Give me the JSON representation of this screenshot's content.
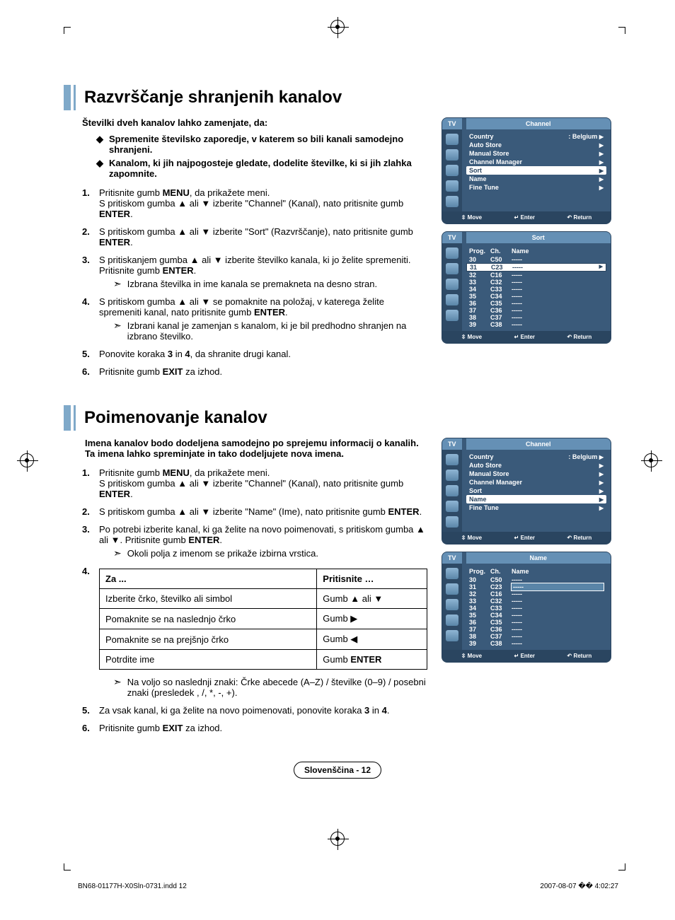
{
  "glyphs": {
    "up": "▲",
    "down": "▼",
    "left": "◀",
    "right": "▶",
    "diamond": "◆",
    "arrowNote": "➣",
    "updown": "⇳",
    "enterIcon": "↵",
    "returnIcon": "↶"
  },
  "sec1": {
    "title": "Razvrščanje shranjenih kanalov",
    "intro": "Številki dveh kanalov lahko zamenjate, da:",
    "bullets": [
      "Spremenite številsko zaporedje, v katerem so bili kanali samodejno shranjeni.",
      "Kanalom, ki jih najpogosteje gledate, dodelite številke, ki si jih zlahka zapomnite."
    ],
    "steps": [
      {
        "n": "1.",
        "html": "Pritisnite gumb <b>MENU</b>, da prikažete meni.<br>S pritiskom gumba ▲ ali ▼ izberite \"Channel\" (Kanal), nato pritisnite gumb <b>ENTER</b>."
      },
      {
        "n": "2.",
        "html": "S pritiskom gumba ▲ ali ▼ izberite \"Sort\" (Razvrščanje), nato pritisnite gumb <b>ENTER</b>."
      },
      {
        "n": "3.",
        "html": "S pritiskanjem gumba ▲ ali ▼ izberite številko kanala, ki jo želite spremeniti. Pritisnite gumb <b>ENTER</b>.",
        "note": "Izbrana številka in ime kanala se premakneta na desno stran."
      },
      {
        "n": "4.",
        "html": "S pritiskom gumba ▲ ali ▼ se pomaknite na položaj, v katerega želite spremeniti kanal, nato pritisnite gumb <b>ENTER</b>.",
        "note": "Izbrani kanal je zamenjan s kanalom, ki je bil predhodno shranjen na izbrano številko."
      },
      {
        "n": "5.",
        "html": "Ponovite koraka <b>3</b> in <b>4</b>, da shranite drugi kanal."
      },
      {
        "n": "6.",
        "html": "Pritisnite gumb <b>EXIT</b> za izhod."
      }
    ]
  },
  "sec2": {
    "title": "Poimenovanje kanalov",
    "intro": "Imena kanalov bodo dodeljena samodejno po sprejemu informacij o kanalih. Ta imena lahko spreminjate in tako dodeljujete nova imena.",
    "steps": [
      {
        "n": "1.",
        "html": "Pritisnite gumb <b>MENU</b>, da prikažete meni.<br>S pritiskom gumba ▲ ali ▼ izberite \"Channel\" (Kanal), nato pritisnite gumb <b>ENTER</b>."
      },
      {
        "n": "2.",
        "html": "S pritiskom gumba ▲ ali ▼ izberite \"Name\" (Ime), nato pritisnite gumb <b>ENTER</b>."
      },
      {
        "n": "3.",
        "html": "Po potrebi izberite kanal, ki ga želite na novo poimenovati, s pritiskom gumba ▲ ali ▼. Pritisnite gumb <b>ENTER</b>.",
        "note": "Okoli polja z imenom se prikaže izbirna vrstica."
      }
    ],
    "tableHead": [
      "Za ...",
      "Pritisnite …"
    ],
    "tableRows": [
      [
        "Izberite črko, številko ali simbol",
        "Gumb ▲ ali ▼"
      ],
      [
        "Pomaknite se na naslednjo črko",
        "Gumb ▶"
      ],
      [
        "Pomaknite se na prejšnjo črko",
        "Gumb ◀"
      ],
      [
        "Potrdite ime",
        "Gumb <b>ENTER</b>"
      ]
    ],
    "postNote": "Na voljo so naslednji znaki: Črke abecede (A–Z) / številke (0–9) / posebni znaki (presledek , /, *, -, +).",
    "postSteps": [
      {
        "n": "5.",
        "html": "Za vsak kanal, ki ga želite na novo poimenovati, ponovite koraka <b>3</b> in <b>4</b>."
      },
      {
        "n": "6.",
        "html": "Pritisnite gumb <b>EXIT</b> za izhod."
      }
    ]
  },
  "osd": {
    "tv": "TV",
    "channelTitle": "Channel",
    "sortTitle": "Sort",
    "nameTitle": "Name",
    "menuItems": [
      "Country",
      "Auto Store",
      "Manual Store",
      "Channel Manager",
      "Sort",
      "Name",
      "Fine Tune"
    ],
    "countryVal": ": Belgium",
    "footer": {
      "move": "Move",
      "enter": "Enter",
      "return": "Return"
    },
    "sortCols": [
      "Prog.",
      "Ch.",
      "Name"
    ],
    "sortRows": [
      [
        "30",
        "C50",
        "-----"
      ],
      [
        "31",
        "C23",
        "-----"
      ],
      [
        "32",
        "C16",
        "-----"
      ],
      [
        "33",
        "C32",
        "-----"
      ],
      [
        "34",
        "C33",
        "-----"
      ],
      [
        "35",
        "C34",
        "-----"
      ],
      [
        "36",
        "C35",
        "-----"
      ],
      [
        "37",
        "C36",
        "-----"
      ],
      [
        "38",
        "C37",
        "-----"
      ],
      [
        "39",
        "C38",
        "-----"
      ]
    ],
    "nameRows": [
      [
        "30",
        "C50",
        "-----"
      ],
      [
        "31",
        "C23",
        "-----"
      ],
      [
        "32",
        "C16",
        "-----"
      ],
      [
        "33",
        "C32",
        "-----"
      ],
      [
        "34",
        "C33",
        "-----"
      ],
      [
        "35",
        "C34",
        "-----"
      ],
      [
        "36",
        "C35",
        "-----"
      ],
      [
        "37",
        "C36",
        "-----"
      ],
      [
        "38",
        "C37",
        "-----"
      ],
      [
        "39",
        "C38",
        "-----"
      ]
    ]
  },
  "pageLabel": "Slovenščina - 12",
  "footer": {
    "left": "BN68-01177H-X0Sln-0731.indd   12",
    "right": "2007-08-07   �� 4:02:27"
  },
  "colors": {
    "accent": "#7fa9c9",
    "osdBg": "#3a5a7a",
    "osdDark": "#2a4560",
    "osdMid": "#6590b5"
  }
}
